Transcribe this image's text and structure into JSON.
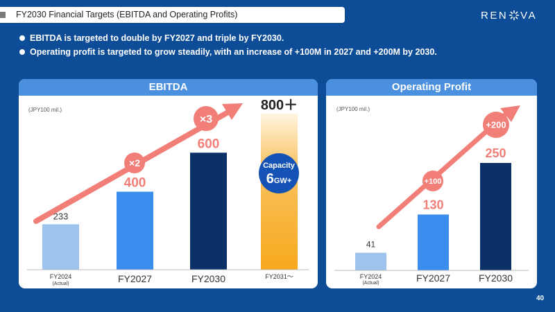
{
  "header": {
    "title": "FY2030 Financial Targets (EBITDA and Operating Profits)",
    "logo_text": "RENOVA"
  },
  "bullets": [
    "EBITDA is targeted to double by FY2027 and triple by FY2030.",
    "Operating profit is targeted to grow steadily, with an increase of +100M in 2027 and +200M by 2030."
  ],
  "page_number": "40",
  "colors": {
    "background": "#0d4c96",
    "panel_header": "#4b8fdf",
    "bar_fy2024": "#9ec3ec",
    "bar_fy2027": "#3b8ded",
    "bar_fy2030": "#0b3168",
    "bar_fy2031": "#f7a91c",
    "arrow": "#f27e78",
    "value_label": "#f27e78",
    "capacity_circle": "#1452b6"
  },
  "chart_data": [
    {
      "type": "bar",
      "title": "EBITDA",
      "unit_label": "(JPY100 mil.)",
      "categories": [
        "FY2024",
        "FY2027",
        "FY2030",
        "FY2031～"
      ],
      "category_sublabels": [
        "(Actual)",
        "",
        "",
        ""
      ],
      "values": [
        233,
        400,
        600,
        800
      ],
      "value_labels": [
        "233",
        "400",
        "600",
        "800＋"
      ],
      "ylim": [
        0,
        800
      ],
      "growth_badges": [
        {
          "label": "×2",
          "at": "FY2027"
        },
        {
          "label": "×3",
          "at": "FY2030"
        }
      ],
      "annotation": {
        "line1": "Capacity",
        "line2_num": "6",
        "line2_unit": "GW+"
      }
    },
    {
      "type": "bar",
      "title": "Operating Profit",
      "unit_label": "(JPY100 mil.)",
      "categories": [
        "FY2024",
        "FY2027",
        "FY2030"
      ],
      "category_sublabels": [
        "(Actual)",
        "",
        ""
      ],
      "values": [
        41,
        130,
        250
      ],
      "value_labels": [
        "41",
        "130",
        "250"
      ],
      "ylim": [
        0,
        250
      ],
      "growth_badges": [
        {
          "label": "+100",
          "at": "FY2027"
        },
        {
          "label": "+200",
          "at": "FY2030"
        }
      ]
    }
  ]
}
